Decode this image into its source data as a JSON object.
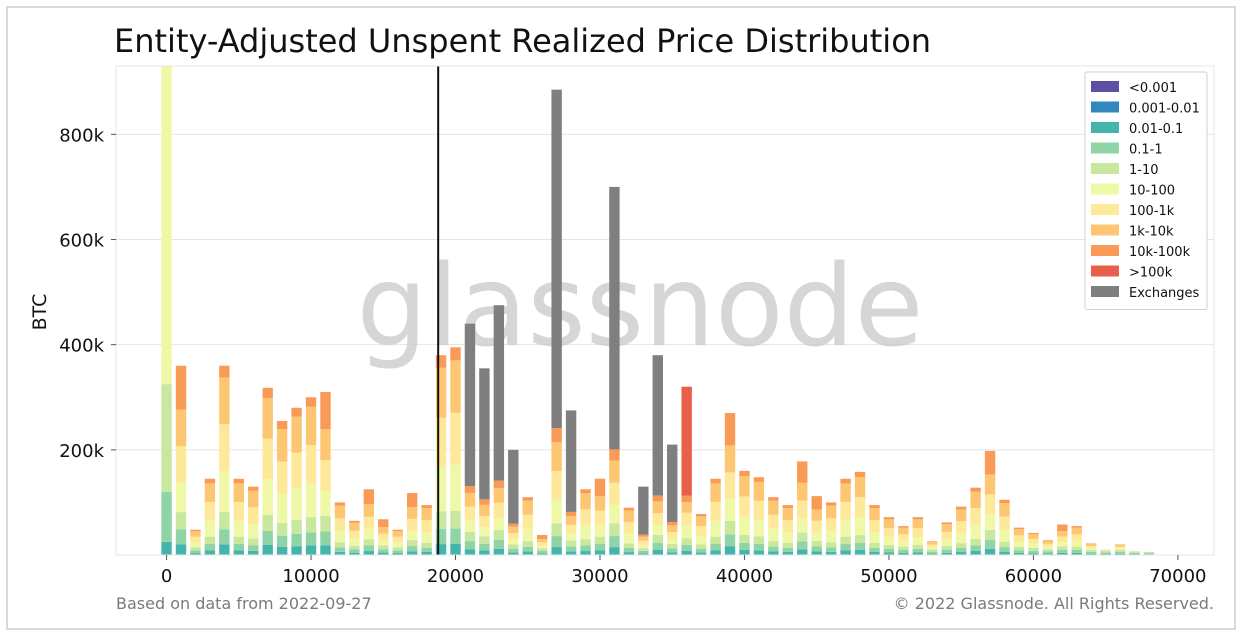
{
  "title": "Entity-Adjusted Unspent Realized Price Distribution",
  "footer": {
    "source": "Based on data from 2022-09-27",
    "copyright": "© 2022 Glassnode. All Rights Reserved."
  },
  "watermark": "glassnode",
  "chart_data": {
    "type": "bar",
    "stacked": true,
    "ylabel": "BTC",
    "xlabel": "",
    "xlim": [
      -3500,
      72500
    ],
    "ylim": [
      0,
      930000
    ],
    "x_ticks": [
      0,
      10000,
      20000,
      30000,
      40000,
      50000,
      60000,
      70000
    ],
    "x_tick_labels": [
      "0",
      "10000",
      "20000",
      "30000",
      "40000",
      "50000",
      "60000",
      "70000"
    ],
    "y_ticks": [
      200000,
      400000,
      600000,
      800000
    ],
    "y_tick_labels": [
      "200k",
      "400k",
      "600k",
      "800k"
    ],
    "grid": "horizontal",
    "legend_position": "top-right",
    "current_price_line": 18800,
    "series": [
      {
        "name": "<0.001",
        "color": "#5e4fa2"
      },
      {
        "name": "0.001-0.01",
        "color": "#3288bd"
      },
      {
        "name": "0.01-0.1",
        "color": "#44b5ad"
      },
      {
        "name": "0.1-1",
        "color": "#8fd4a4"
      },
      {
        "name": "1-10",
        "color": "#c7e89e"
      },
      {
        "name": "10-100",
        "color": "#eff8a6"
      },
      {
        "name": "100-1k",
        "color": "#fee89a"
      },
      {
        "name": "1k-10k",
        "color": "#fdc672"
      },
      {
        "name": "10k-100k",
        "color": "#f99b57"
      },
      {
        "name": ">100k",
        "color": "#e8604a"
      },
      {
        "name": "Exchanges",
        "color": "#7f7f7f"
      }
    ],
    "bars": [
      {
        "x": 0,
        "total": 930000,
        "dominant": "10-100"
      },
      {
        "x": 1000,
        "total": 360000,
        "dominant": "10k-100k"
      },
      {
        "x": 2000,
        "total": 48000,
        "dominant": "1-10"
      },
      {
        "x": 3000,
        "total": 145000,
        "dominant": "1k-10k"
      },
      {
        "x": 4000,
        "total": 360000,
        "dominant": "1k-10k"
      },
      {
        "x": 5000,
        "total": 145000,
        "dominant": "1k-10k"
      },
      {
        "x": 6000,
        "total": 130000,
        "dominant": "1k-10k"
      },
      {
        "x": 7000,
        "total": 318000,
        "dominant": "1k-10k"
      },
      {
        "x": 8000,
        "total": 255000,
        "dominant": "1k-10k"
      },
      {
        "x": 9000,
        "total": 280000,
        "dominant": "1k-10k"
      },
      {
        "x": 10000,
        "total": 300000,
        "dominant": "1k-10k"
      },
      {
        "x": 11000,
        "total": 310000,
        "dominant": "10k-100k"
      },
      {
        "x": 12000,
        "total": 100000,
        "dominant": "1k-10k"
      },
      {
        "x": 13000,
        "total": 65000,
        "dominant": "1k-10k"
      },
      {
        "x": 14000,
        "total": 125000,
        "dominant": "10k-100k"
      },
      {
        "x": 15000,
        "total": 68000,
        "dominant": "10k-100k"
      },
      {
        "x": 16000,
        "total": 48000,
        "dominant": "1k-10k"
      },
      {
        "x": 17000,
        "total": 118000,
        "dominant": "10k-100k"
      },
      {
        "x": 18000,
        "total": 95000,
        "dominant": "1k-10k"
      },
      {
        "x": 19000,
        "total": 380000,
        "dominant": "1k-10k"
      },
      {
        "x": 20000,
        "total": 395000,
        "dominant": "1k-10k"
      },
      {
        "x": 21000,
        "total": 440000,
        "dominant": "Exchanges"
      },
      {
        "x": 22000,
        "total": 355000,
        "dominant": "Exchanges"
      },
      {
        "x": 23000,
        "total": 475000,
        "dominant": "Exchanges"
      },
      {
        "x": 24000,
        "total": 200000,
        "dominant": "Exchanges"
      },
      {
        "x": 25000,
        "total": 110000,
        "dominant": "1k-10k"
      },
      {
        "x": 26000,
        "total": 38000,
        "dominant": "10k-100k"
      },
      {
        "x": 27000,
        "total": 885000,
        "dominant": "Exchanges"
      },
      {
        "x": 28000,
        "total": 275000,
        "dominant": "Exchanges"
      },
      {
        "x": 29000,
        "total": 125000,
        "dominant": "1k-10k"
      },
      {
        "x": 30000,
        "total": 145000,
        "dominant": "10k-100k"
      },
      {
        "x": 31000,
        "total": 700000,
        "dominant": "Exchanges"
      },
      {
        "x": 32000,
        "total": 90000,
        "dominant": "1k-10k"
      },
      {
        "x": 33000,
        "total": 130000,
        "dominant": "Exchanges"
      },
      {
        "x": 34000,
        "total": 380000,
        "dominant": "Exchanges"
      },
      {
        "x": 35000,
        "total": 210000,
        "dominant": "Exchanges"
      },
      {
        "x": 36000,
        "total": 320000,
        "dominant": ">100k"
      },
      {
        "x": 37000,
        "total": 78000,
        "dominant": "1k-10k"
      },
      {
        "x": 38000,
        "total": 145000,
        "dominant": "1k-10k"
      },
      {
        "x": 39000,
        "total": 270000,
        "dominant": "10k-100k"
      },
      {
        "x": 40000,
        "total": 160000,
        "dominant": "1k-10k"
      },
      {
        "x": 41000,
        "total": 148000,
        "dominant": "1k-10k"
      },
      {
        "x": 42000,
        "total": 110000,
        "dominant": "1k-10k"
      },
      {
        "x": 43000,
        "total": 95000,
        "dominant": "1k-10k"
      },
      {
        "x": 44000,
        "total": 178000,
        "dominant": "10k-100k"
      },
      {
        "x": 45000,
        "total": 112000,
        "dominant": "10k-100k"
      },
      {
        "x": 46000,
        "total": 100000,
        "dominant": "1k-10k"
      },
      {
        "x": 47000,
        "total": 145000,
        "dominant": "1k-10k"
      },
      {
        "x": 48000,
        "total": 158000,
        "dominant": "1k-10k"
      },
      {
        "x": 49000,
        "total": 95000,
        "dominant": "1k-10k"
      },
      {
        "x": 50000,
        "total": 72000,
        "dominant": "1k-10k"
      },
      {
        "x": 51000,
        "total": 55000,
        "dominant": "1k-10k"
      },
      {
        "x": 52000,
        "total": 72000,
        "dominant": "1k-10k"
      },
      {
        "x": 53000,
        "total": 26000,
        "dominant": "1k-10k"
      },
      {
        "x": 54000,
        "total": 62000,
        "dominant": "1k-10k"
      },
      {
        "x": 55000,
        "total": 92000,
        "dominant": "1k-10k"
      },
      {
        "x": 56000,
        "total": 128000,
        "dominant": "1k-10k"
      },
      {
        "x": 57000,
        "total": 198000,
        "dominant": "10k-100k"
      },
      {
        "x": 58000,
        "total": 105000,
        "dominant": "1k-10k"
      },
      {
        "x": 59000,
        "total": 52000,
        "dominant": "1k-10k"
      },
      {
        "x": 60000,
        "total": 42000,
        "dominant": "1k-10k"
      },
      {
        "x": 61000,
        "total": 28000,
        "dominant": "1k-10k"
      },
      {
        "x": 62000,
        "total": 58000,
        "dominant": "10k-100k"
      },
      {
        "x": 63000,
        "total": 55000,
        "dominant": "1k-10k"
      },
      {
        "x": 64000,
        "total": 22000,
        "dominant": "1k-10k"
      },
      {
        "x": 65000,
        "total": 10000,
        "dominant": "1k-10k"
      },
      {
        "x": 66000,
        "total": 20000,
        "dominant": "1k-10k"
      },
      {
        "x": 67000,
        "total": 6000,
        "dominant": "1k-10k"
      },
      {
        "x": 68000,
        "total": 5000,
        "dominant": "1k-10k"
      }
    ]
  }
}
